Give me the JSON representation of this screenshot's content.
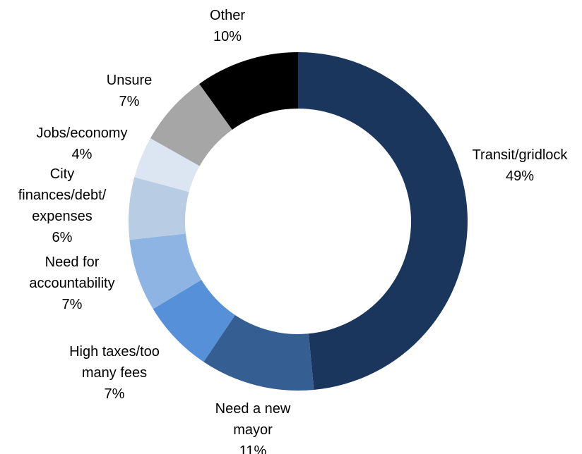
{
  "chart_data": {
    "type": "pie",
    "variant": "donut",
    "unit": "%",
    "title": "",
    "legend": "none",
    "slices": [
      {
        "label": "Transit/gridlock",
        "value": 49,
        "value_label": "49%",
        "color": "#1b365d"
      },
      {
        "label": "Need a new mayor",
        "value": 11,
        "value_label": "11%",
        "color": "#355f93"
      },
      {
        "label": "High taxes/too many fees",
        "value": 7,
        "value_label": "7%",
        "color": "#5690d8"
      },
      {
        "label": "Need for accountability",
        "value": 7,
        "value_label": "7%",
        "color": "#8eb4e3"
      },
      {
        "label": "City finances/debt/ expenses",
        "value": 6,
        "value_label": "6%",
        "color": "#b8cde4"
      },
      {
        "label": "Jobs/economy",
        "value": 4,
        "value_label": "4%",
        "color": "#dce6f2"
      },
      {
        "label": "Unsure",
        "value": 7,
        "value_label": "7%",
        "color": "#a6a6a6"
      },
      {
        "label": "Other",
        "value": 10,
        "value_label": "10%",
        "color": "#000000"
      }
    ]
  }
}
